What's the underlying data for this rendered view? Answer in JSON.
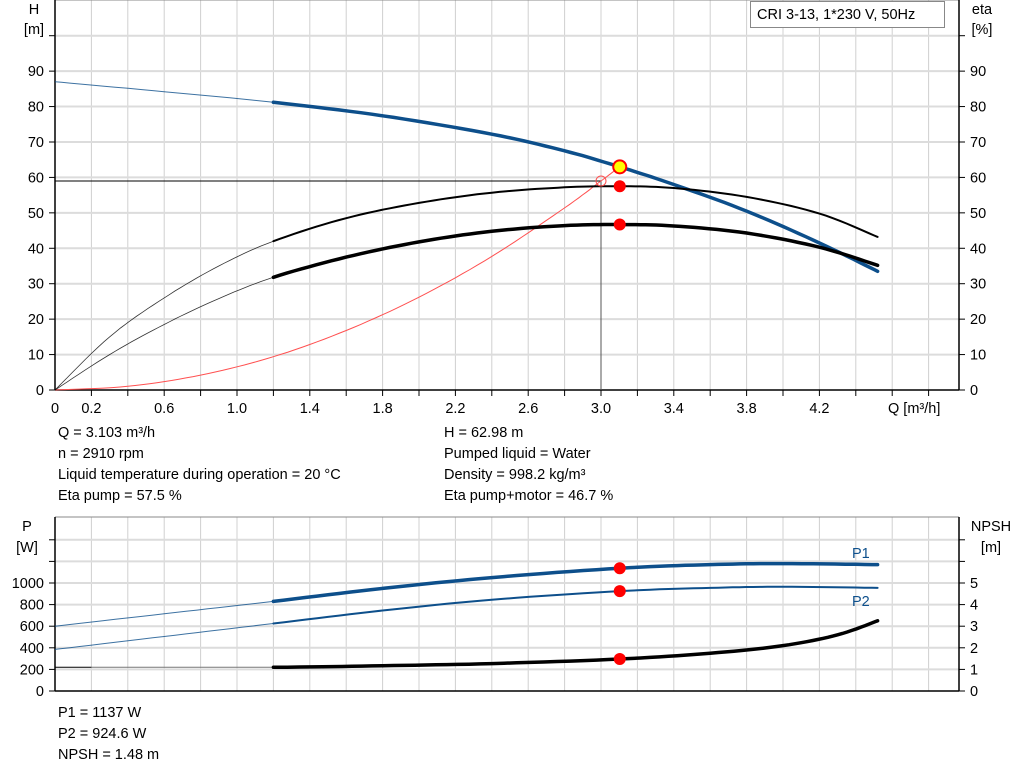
{
  "chart_data": [
    {
      "type": "line",
      "title": "CRI 3-13, 1*230 V, 50Hz",
      "xlabel": "Q [m³/h]",
      "ylabel_left": [
        "H",
        "[m]"
      ],
      "ylabel_right": [
        "eta",
        "[%]"
      ],
      "xlim": [
        0,
        4.97
      ],
      "ylim": [
        0,
        110
      ],
      "x_ticks": [
        "0",
        "0.2",
        "0.6",
        "1.0",
        "1.4",
        "1.8",
        "2.2",
        "2.6",
        "3.0",
        "3.4",
        "3.8",
        "4.2"
      ],
      "y_ticks_left": [
        "0",
        "10",
        "20",
        "30",
        "40",
        "50",
        "60",
        "70",
        "80",
        "90"
      ],
      "y_ticks_right": [
        "0",
        "10",
        "20",
        "30",
        "40",
        "50",
        "60",
        "70",
        "80",
        "90"
      ],
      "grid": true,
      "colors": {
        "head": "#0d4f8b",
        "eta": "#000000",
        "system": "#ff5050",
        "point": "#ff0000",
        "duty": "#ffff00"
      },
      "series": [
        {
          "key": "head",
          "x": [
            0,
            0.6,
            1.2,
            1.8,
            2.4,
            2.8,
            3.103,
            3.4,
            3.8,
            4.2,
            4.52
          ],
          "y": [
            87,
            84.2,
            81.2,
            77.4,
            72.2,
            67.5,
            62.98,
            58,
            50.5,
            41.5,
            33.5
          ]
        },
        {
          "key": "eta-pump",
          "x": [
            0,
            0.3,
            0.6,
            0.9,
            1.2,
            1.6,
            2.0,
            2.4,
            2.8,
            3.103,
            3.4,
            3.8,
            4.2,
            4.52
          ],
          "y": [
            0,
            15,
            26,
            35,
            42,
            48.5,
            52.8,
            55.7,
            57.2,
            57.5,
            57,
            54.5,
            49.8,
            43.2
          ]
        },
        {
          "key": "eta-total",
          "x": [
            0,
            0.3,
            0.6,
            0.9,
            1.2,
            1.6,
            2.0,
            2.4,
            2.8,
            3.103,
            3.4,
            3.8,
            4.2,
            4.52
          ],
          "y": [
            0,
            10,
            18.5,
            25.8,
            31.8,
            37.5,
            41.8,
            44.8,
            46.4,
            46.7,
            46.3,
            44.3,
            40.3,
            35.2
          ]
        },
        {
          "key": "system",
          "x": [
            0,
            0.4,
            0.8,
            1.2,
            1.6,
            2.0,
            2.4,
            2.8,
            3.0,
            3.103
          ],
          "y": [
            0,
            1.05,
            4.2,
            9.4,
            16.8,
            26.2,
            37.7,
            51.4,
            59,
            62.98
          ]
        }
      ],
      "duty_point": {
        "q": 3.103,
        "h": 62.98,
        "eta_pump": 57.5,
        "eta_total": 46.7
      },
      "requested_point": {
        "q": 3.0,
        "h": 59
      }
    },
    {
      "type": "line",
      "xlim": [
        0,
        4.97
      ],
      "ylim": [
        0,
        1610
      ],
      "ylabel_left": [
        "P",
        "[W]"
      ],
      "ylabel_right": [
        "NPSH",
        "[m]"
      ],
      "y_ticks_left": [
        "0",
        "200",
        "400",
        "600",
        "800",
        "1000"
      ],
      "y_ticks_right": [
        "0",
        "1",
        "2",
        "3",
        "4",
        "5"
      ],
      "grid": true,
      "series": [
        {
          "name": "P1",
          "x": [
            0,
            0.6,
            1.2,
            1.8,
            2.4,
            3.103,
            3.6,
            4.0,
            4.52
          ],
          "y": [
            600,
            715,
            830,
            950,
            1050,
            1137,
            1170,
            1180,
            1170
          ]
        },
        {
          "name": "P2",
          "x": [
            0,
            0.6,
            1.2,
            1.8,
            2.4,
            3.103,
            3.6,
            4.0,
            4.52
          ],
          "y": [
            385,
            505,
            625,
            745,
            845,
            924.6,
            955,
            965,
            955
          ]
        },
        {
          "key": "npsh",
          "x": [
            0,
            0.2,
            1.2,
            1.8,
            2.4,
            3.103,
            3.6,
            4.0,
            4.3,
            4.52
          ],
          "y": [
            1.1,
            1.1,
            1.1,
            1.17,
            1.27,
            1.48,
            1.75,
            2.1,
            2.6,
            3.25
          ]
        }
      ]
    }
  ],
  "info_top_left": [
    "Q = 3.103 m³/h",
    "n = 2910 rpm",
    "Liquid temperature during operation = 20 °C",
    "Eta pump = 57.5 %"
  ],
  "info_top_right": [
    "H = 62.98 m",
    "Pumped liquid = Water",
    "Density = 998.2 kg/m³",
    "Eta pump+motor = 46.7 %"
  ],
  "info_bottom": [
    "P1 = 1137 W",
    "P2 = 924.6 W",
    "NPSH = 1.48 m"
  ]
}
